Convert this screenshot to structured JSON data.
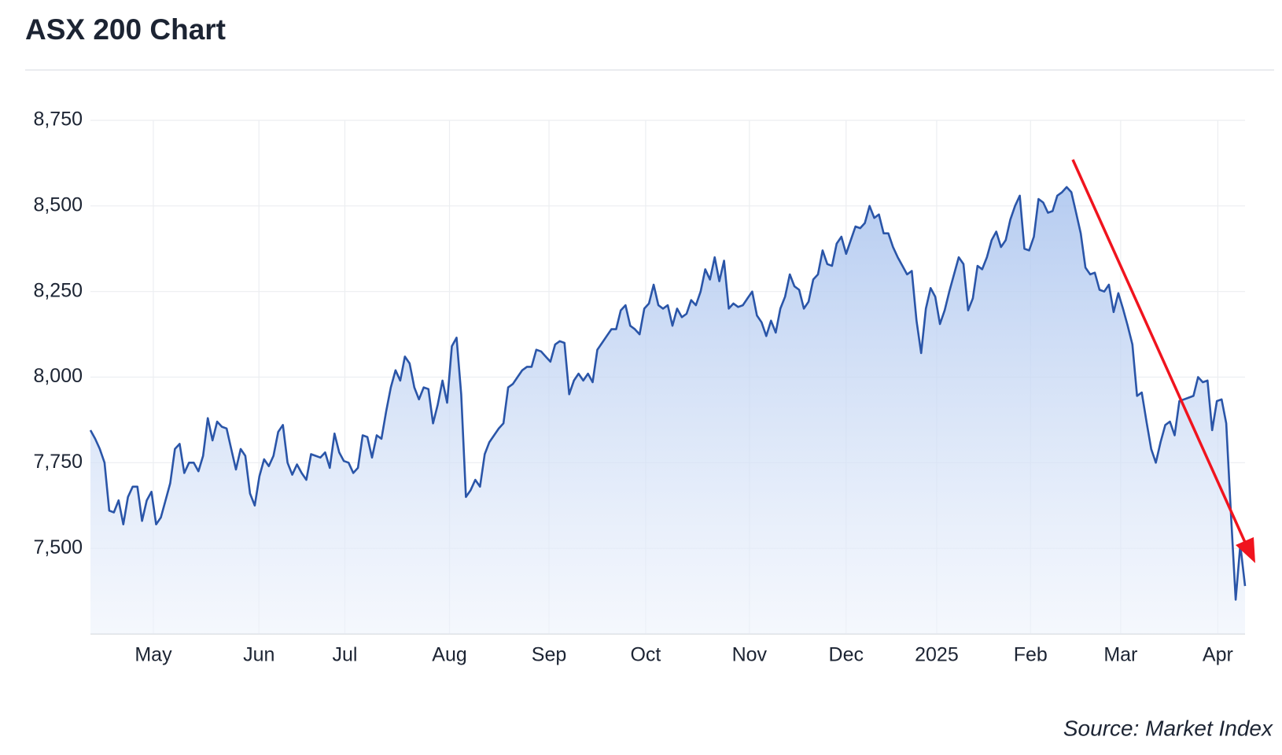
{
  "chart_data": {
    "type": "line",
    "title": "ASX 200 Chart",
    "source": "Source: Market Index",
    "color": "#2a55a8",
    "grid": true,
    "values": [
      7845,
      7820,
      7790,
      7750,
      7610,
      7605,
      7640,
      7570,
      7650,
      7680,
      7680,
      7580,
      7640,
      7665,
      7570,
      7590,
      7640,
      7690,
      7790,
      7805,
      7720,
      7750,
      7750,
      7725,
      7770,
      7880,
      7815,
      7870,
      7855,
      7850,
      7790,
      7730,
      7790,
      7770,
      7660,
      7625,
      7710,
      7760,
      7740,
      7770,
      7840,
      7860,
      7750,
      7715,
      7745,
      7720,
      7700,
      7775,
      7770,
      7765,
      7780,
      7735,
      7835,
      7780,
      7755,
      7750,
      7720,
      7735,
      7830,
      7825,
      7765,
      7830,
      7820,
      7900,
      7970,
      8020,
      7990,
      8060,
      8040,
      7970,
      7935,
      7970,
      7965,
      7865,
      7920,
      7990,
      7925,
      8090,
      8115,
      7950,
      7650,
      7670,
      7700,
      7680,
      7775,
      7810,
      7830,
      7850,
      7865,
      7970,
      7980,
      8000,
      8020,
      8030,
      8030,
      8080,
      8075,
      8060,
      8045,
      8095,
      8105,
      8100,
      7950,
      7990,
      8010,
      7990,
      8010,
      7985,
      8080,
      8100,
      8120,
      8140,
      8140,
      8195,
      8210,
      8150,
      8140,
      8125,
      8200,
      8215,
      8270,
      8210,
      8200,
      8210,
      8150,
      8200,
      8175,
      8185,
      8225,
      8210,
      8250,
      8315,
      8285,
      8350,
      8280,
      8340,
      8200,
      8215,
      8205,
      8210,
      8230,
      8250,
      8180,
      8160,
      8120,
      8165,
      8130,
      8200,
      8235,
      8300,
      8265,
      8255,
      8200,
      8220,
      8285,
      8300,
      8370,
      8330,
      8325,
      8390,
      8410,
      8360,
      8400,
      8440,
      8435,
      8450,
      8500,
      8465,
      8475,
      8420,
      8420,
      8380,
      8350,
      8325,
      8300,
      8310,
      8165,
      8070,
      8200,
      8260,
      8235,
      8155,
      8195,
      8250,
      8300,
      8350,
      8330,
      8195,
      8230,
      8325,
      8315,
      8350,
      8400,
      8425,
      8380,
      8400,
      8460,
      8500,
      8530,
      8375,
      8370,
      8410,
      8520,
      8510,
      8480,
      8485,
      8530,
      8540,
      8555,
      8540,
      8480,
      8420,
      8320,
      8300,
      8305,
      8255,
      8250,
      8270,
      8190,
      8245,
      8200,
      8150,
      8095,
      7945,
      7955,
      7870,
      7790,
      7750,
      7810,
      7860,
      7870,
      7830,
      7930,
      7935,
      7940,
      7945,
      8000,
      7985,
      7990,
      7845,
      7930,
      7935,
      7865,
      7600,
      7350,
      7510,
      7390
    ],
    "xlim": [
      0,
      246
    ],
    "xticks": [
      {
        "value": 13.4,
        "label": "May"
      },
      {
        "value": 35.9,
        "label": "Jun"
      },
      {
        "value": 54.2,
        "label": "Jul"
      },
      {
        "value": 76.5,
        "label": "Aug"
      },
      {
        "value": 97.7,
        "label": "Sep"
      },
      {
        "value": 118.3,
        "label": "Oct"
      },
      {
        "value": 140.4,
        "label": "Nov"
      },
      {
        "value": 161,
        "label": "Dec"
      },
      {
        "value": 180.3,
        "label": "2025"
      },
      {
        "value": 200.3,
        "label": "Feb"
      },
      {
        "value": 219.5,
        "label": "Mar"
      },
      {
        "value": 240.2,
        "label": "Apr"
      }
    ],
    "ylim": [
      7250,
      8750
    ],
    "yticks": [
      {
        "value": 7500,
        "label": "7,500"
      },
      {
        "value": 7750,
        "label": "7,750"
      },
      {
        "value": 8000,
        "label": "8,000"
      },
      {
        "value": 8250,
        "label": "8,250"
      },
      {
        "value": 8500,
        "label": "8,500"
      },
      {
        "value": 8750,
        "label": "8,750"
      }
    ]
  }
}
